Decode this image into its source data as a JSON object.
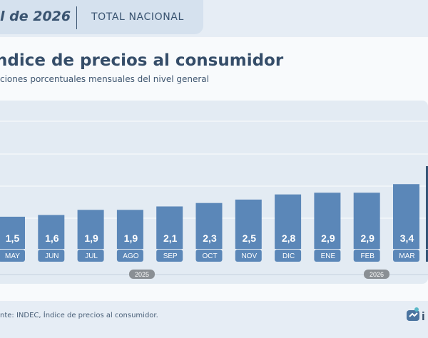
{
  "header": {
    "left": "l de 2026",
    "right": "TOTAL NACIONAL"
  },
  "title": "ndice de precios al consumidor",
  "subtitle": "ciones porcentuales mensuales del nivel general",
  "source": "nte: INDEC, Índice de precios al consumidor.",
  "logo_text": "i",
  "colors": {
    "bar": "#5b87b8",
    "bar_last": "#355476",
    "pill": "#5b87b8",
    "year_pill": "#8a8f94"
  },
  "chart_data": {
    "type": "bar",
    "categories": [
      "MAY",
      "JUN",
      "JUL",
      "AGO",
      "SEP",
      "OCT",
      "NOV",
      "DIC",
      "ENE",
      "FEB",
      "MAR"
    ],
    "values": [
      1.5,
      1.6,
      1.9,
      1.9,
      2.1,
      2.3,
      2.5,
      2.8,
      2.9,
      2.9,
      3.4
    ],
    "value_labels": [
      "1,5",
      "1,6",
      "1,9",
      "1,9",
      "2,1",
      "2,3",
      "2,5",
      "2,8",
      "2,9",
      "2,9",
      "3,4"
    ],
    "years": [
      {
        "label": "2025",
        "from": "MAY",
        "to": "DIC"
      },
      {
        "label": "2026",
        "from": "ENE",
        "to": "MAR"
      }
    ],
    "grid": true
  }
}
